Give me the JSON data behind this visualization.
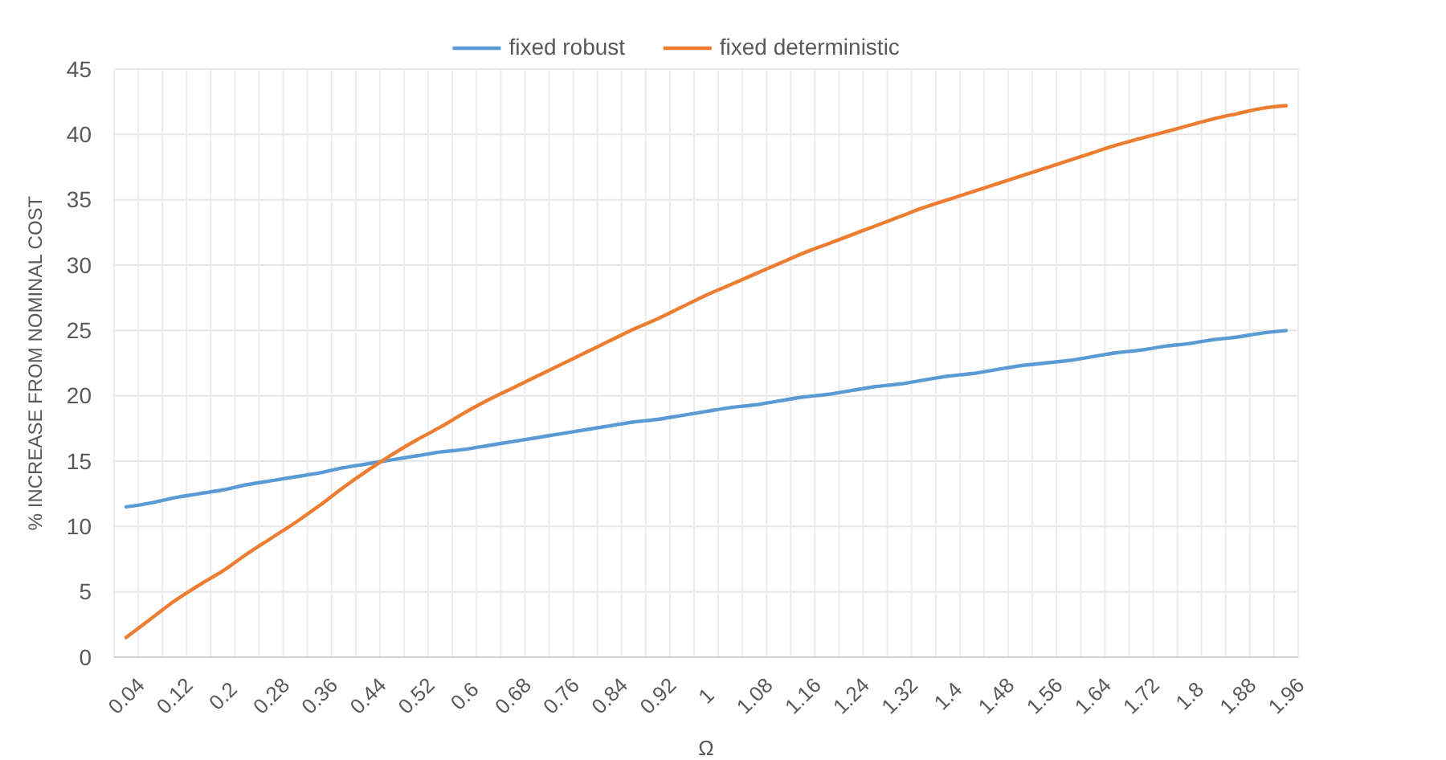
{
  "chart_data": {
    "type": "line",
    "xlabel": "Ω",
    "ylabel": "% INCREASE FROM NOMINAL COST",
    "categories": [
      "0.04",
      null,
      "0.12",
      null,
      "0.2",
      null,
      "0.28",
      null,
      "0.36",
      null,
      "0.44",
      null,
      "0.52",
      null,
      "0.6",
      null,
      "0.68",
      null,
      "0.76",
      null,
      "0.84",
      null,
      "0.92",
      null,
      "1",
      null,
      "1.08",
      null,
      "1.16",
      null,
      "1.24",
      null,
      "1.32",
      null,
      "1.4",
      null,
      "1.48",
      null,
      "1.56",
      null,
      "1.64",
      null,
      "1.72",
      null,
      "1.8",
      null,
      "1.88",
      null,
      "1.96"
    ],
    "series": [
      {
        "name": "fixed robust",
        "color": "#5b9bd5",
        "values": [
          11.5,
          11.8,
          12.2,
          12.5,
          12.8,
          13.2,
          13.5,
          13.8,
          14.1,
          14.5,
          14.8,
          15.1,
          15.4,
          15.7,
          15.9,
          16.2,
          16.5,
          16.8,
          17.1,
          17.4,
          17.7,
          18.0,
          18.2,
          18.5,
          18.8,
          19.1,
          19.3,
          19.6,
          19.9,
          20.1,
          20.4,
          20.7,
          20.9,
          21.2,
          21.5,
          21.7,
          22.0,
          22.3,
          22.5,
          22.7,
          23.0,
          23.3,
          23.5,
          23.8,
          24.0,
          24.3,
          24.5,
          24.8,
          25.0
        ]
      },
      {
        "name": "fixed deterministic",
        "color": "#ed7d31",
        "values": [
          1.5,
          2.9,
          4.3,
          5.5,
          6.6,
          7.9,
          9.1,
          10.3,
          11.6,
          13.0,
          14.3,
          15.5,
          16.6,
          17.6,
          18.7,
          19.7,
          20.6,
          21.5,
          22.4,
          23.3,
          24.2,
          25.1,
          25.9,
          26.8,
          27.7,
          28.5,
          29.3,
          30.1,
          30.9,
          31.6,
          32.3,
          33.0,
          33.7,
          34.4,
          35.0,
          35.6,
          36.2,
          36.8,
          37.4,
          38.0,
          38.6,
          39.2,
          39.7,
          40.2,
          40.7,
          41.2,
          41.6,
          42.0,
          42.2
        ]
      }
    ],
    "ylim": [
      0,
      45
    ],
    "yticks": [
      0,
      5,
      10,
      15,
      20,
      25,
      30,
      35,
      40,
      45
    ],
    "grid": true,
    "legend": "top",
    "marker": "none",
    "line_style": "solid"
  }
}
